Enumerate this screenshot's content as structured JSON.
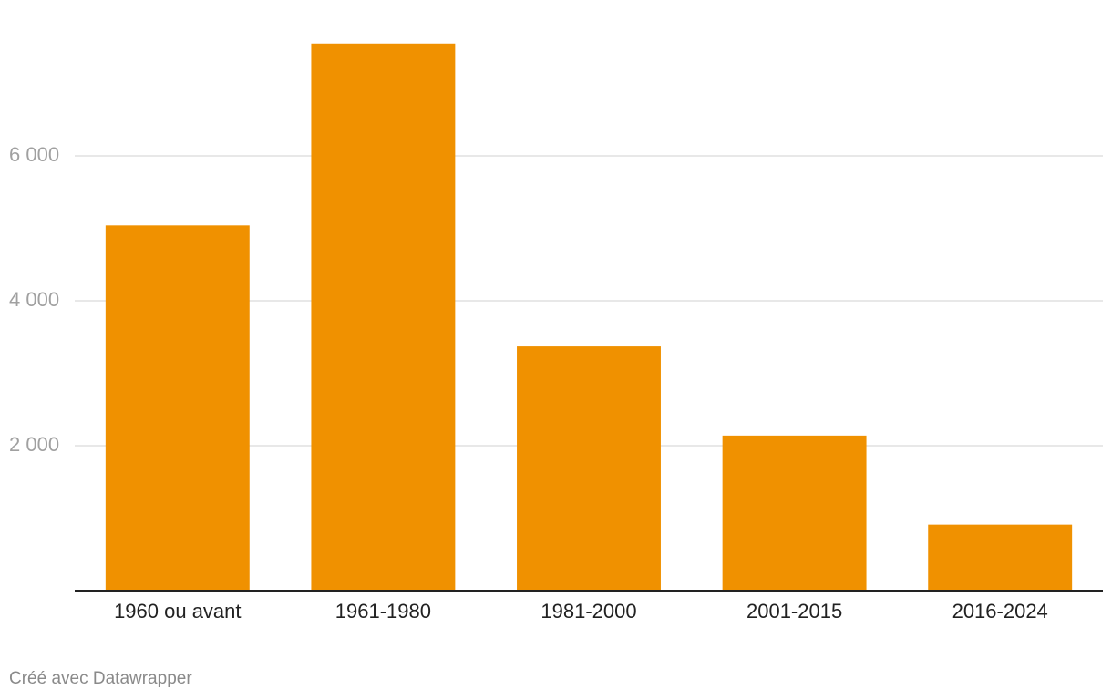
{
  "chart_data": {
    "type": "bar",
    "categories": [
      "1960 ou avant",
      "1961-1980",
      "1981-2000",
      "2001-2015",
      "2016-2024"
    ],
    "values": [
      5040,
      7550,
      3370,
      2140,
      910
    ],
    "color": "#f09100",
    "ylim": [
      0,
      8000
    ],
    "yticks": [
      {
        "value": 2000,
        "label": "2 000"
      },
      {
        "value": 4000,
        "label": "4 000"
      },
      {
        "value": 6000,
        "label": "6 000"
      }
    ],
    "grid": true,
    "credit": "Créé avec Datawrapper"
  }
}
